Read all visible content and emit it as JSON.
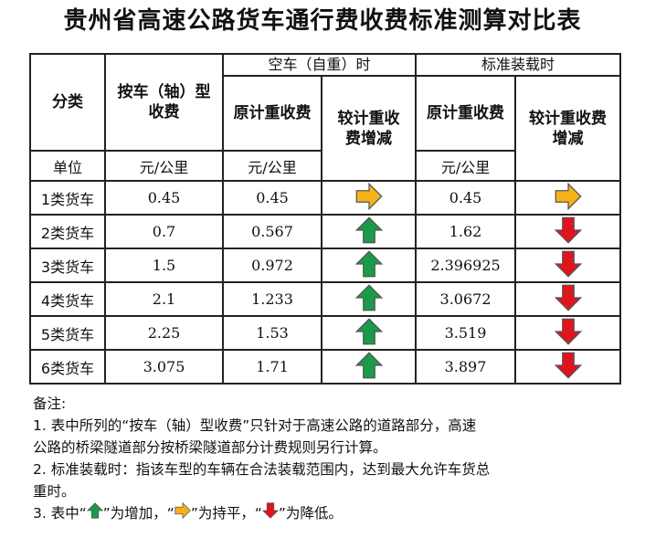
{
  "title": "贵州省高速公路货车通行费收费标准测算对比表",
  "headers": {
    "category": "分类",
    "by_axle": "按车（轴）型收费",
    "empty_group": "空车（自重）时",
    "loaded_group": "标准装载时",
    "orig_weight": "原计重收费",
    "change": "较计重收费增减"
  },
  "units": {
    "label": "单位",
    "by_axle": "元/公里",
    "empty_orig": "元/公里",
    "loaded_orig": "元/公里"
  },
  "rows": [
    {
      "cat": "1类货车",
      "axle": "0.45",
      "empty": "0.45",
      "empty_trend": "flat",
      "loaded": "0.45",
      "loaded_trend": "flat"
    },
    {
      "cat": "2类货车",
      "axle": "0.7",
      "empty": "0.567",
      "empty_trend": "up",
      "loaded": "1.62",
      "loaded_trend": "down"
    },
    {
      "cat": "3类货车",
      "axle": "1.5",
      "empty": "0.972",
      "empty_trend": "up",
      "loaded": "2.396925",
      "loaded_trend": "down"
    },
    {
      "cat": "4类货车",
      "axle": "2.1",
      "empty": "1.233",
      "empty_trend": "up",
      "loaded": "3.0672",
      "loaded_trend": "down"
    },
    {
      "cat": "5类货车",
      "axle": "2.25",
      "empty": "1.53",
      "empty_trend": "up",
      "loaded": "3.519",
      "loaded_trend": "down"
    },
    {
      "cat": "6类货车",
      "axle": "3.075",
      "empty": "1.71",
      "empty_trend": "up",
      "loaded": "3.897",
      "loaded_trend": "down"
    }
  ],
  "notes": {
    "heading": "备注:",
    "n1a": "1. 表中所列的“按车（轴）型收费”只针对于高速公路的道路部分，高速",
    "n1b": "公路的桥梁隧道部分按桥梁隧道部分计费规则另行计算。",
    "n2a": "2. 标准装载时：指该车型的车辆在合法装载范围内，达到最大允许车货总",
    "n2b": "重时。",
    "n3_prefix": "3. 表中“",
    "n3_up": "”为增加，“",
    "n3_flat": "”为持平，“",
    "n3_down": "”为降低。"
  },
  "colors": {
    "up": "#1a9b4a",
    "flat": "#f6b21a",
    "down": "#e0141e"
  }
}
